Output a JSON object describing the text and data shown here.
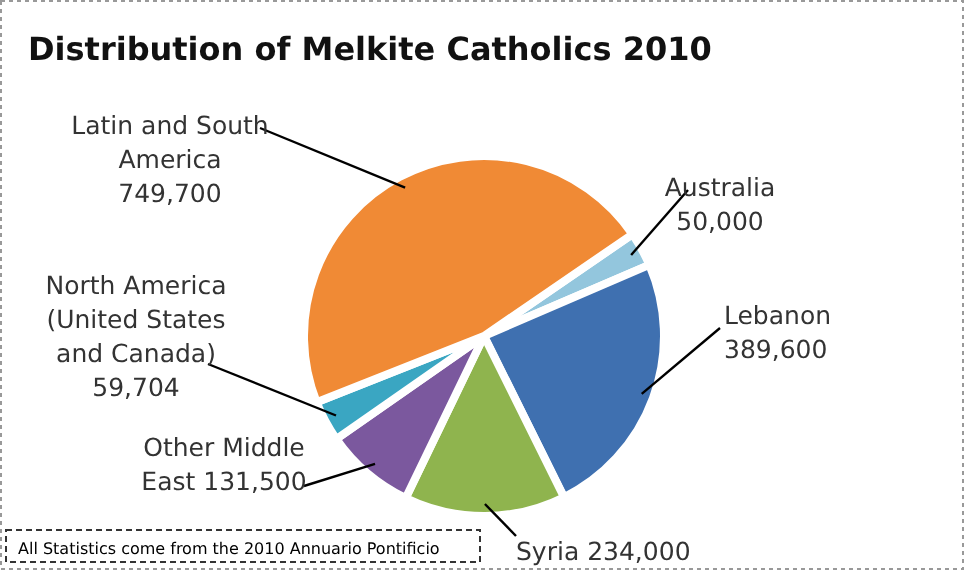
{
  "chart_data": {
    "type": "pie",
    "title": "Distribution of Melkite Catholics 2010",
    "categories": [
      "Australia",
      "Lebanon",
      "Syria",
      "Other Middle East",
      "North America (United States and Canada)",
      "Latin and South America"
    ],
    "values": [
      50000,
      389600,
      234000,
      131500,
      59704,
      749700
    ],
    "value_labels": [
      "50,000",
      "389,600",
      "234,000",
      "131,500",
      "59,704",
      "749,700"
    ],
    "colors": [
      "#93c6dd",
      "#3f70b0",
      "#8fb44e",
      "#7b589e",
      "#3aa6c2",
      "#f08a35"
    ],
    "annotations": [
      "All Statistics come from the 2010 Annuario Pontificio"
    ]
  }
}
